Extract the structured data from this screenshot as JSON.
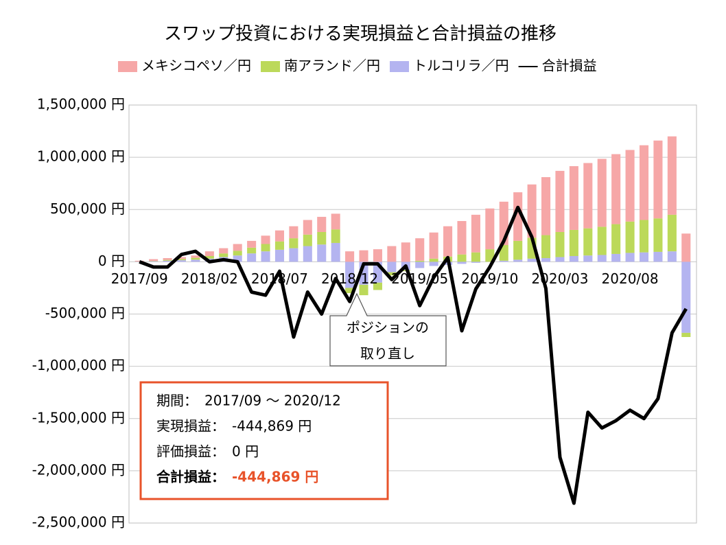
{
  "chart_data": {
    "type": "bar",
    "title": "スワップ投資における実現損益と合計損益の推移",
    "categories": [
      "2017/09",
      null,
      null,
      null,
      null,
      "2018/02",
      null,
      null,
      null,
      null,
      "2018/07",
      null,
      null,
      null,
      null,
      "2018/12",
      null,
      null,
      null,
      null,
      "2019/05",
      null,
      null,
      null,
      null,
      "2019/10",
      null,
      null,
      null,
      null,
      "2020/03",
      null,
      null,
      null,
      null,
      "2020/08",
      null,
      null,
      null,
      null
    ],
    "series": [
      {
        "name": "メキシコペソ／円",
        "type": "bar",
        "color": "#f6a7a7",
        "values": [
          7000,
          17000,
          17000,
          18000,
          22000,
          45000,
          50000,
          65000,
          65000,
          80000,
          105000,
          115000,
          140000,
          145000,
          150000,
          100000,
          110000,
          120000,
          150000,
          185000,
          215000,
          250000,
          290000,
          320000,
          360000,
          390000,
          415000,
          465000,
          510000,
          555000,
          585000,
          610000,
          625000,
          650000,
          670000,
          685000,
          715000,
          745000,
          750000,
          270000
        ]
      },
      {
        "name": "南アランド／円",
        "type": "bar",
        "color": "#bcd95a",
        "values": [
          1000,
          3000,
          8000,
          12000,
          18000,
          25000,
          35000,
          45000,
          55000,
          70000,
          80000,
          95000,
          110000,
          120000,
          130000,
          -50000,
          -100000,
          -70000,
          -30000,
          -10000,
          10000,
          30000,
          50000,
          70000,
          90000,
          120000,
          150000,
          180000,
          200000,
          220000,
          240000,
          250000,
          260000,
          270000,
          285000,
          300000,
          310000,
          320000,
          350000,
          -40000
        ]
      },
      {
        "name": "トルコリラ／円",
        "type": "bar",
        "color": "#b4b4f0",
        "values": [
          2000,
          5000,
          10000,
          15000,
          20000,
          30000,
          45000,
          60000,
          80000,
          100000,
          115000,
          130000,
          150000,
          165000,
          180000,
          -250000,
          -220000,
          -200000,
          -100000,
          -80000,
          -60000,
          -40000,
          -30000,
          -20000,
          -10000,
          0,
          10000,
          20000,
          30000,
          35000,
          45000,
          55000,
          60000,
          65000,
          75000,
          85000,
          90000,
          95000,
          100000,
          -680000
        ]
      },
      {
        "name": "合計損益",
        "type": "line",
        "color": "#000000",
        "values": [
          0,
          -50000,
          -50000,
          70000,
          100000,
          0,
          20000,
          0,
          -290000,
          -320000,
          -90000,
          -720000,
          -290000,
          -500000,
          -160000,
          -380000,
          -20000,
          -20000,
          -170000,
          -40000,
          -420000,
          -150000,
          40000,
          -660000,
          -260000,
          -50000,
          200000,
          520000,
          236000,
          -256000,
          -1870000,
          -2310000,
          -1440000,
          -1590000,
          -1520000,
          -1420000,
          -1500000,
          -1310000,
          -680000,
          -450000
        ]
      }
    ],
    "ylim": [
      -2500000,
      1500000
    ],
    "yticks": [
      {
        "value": -2500000,
        "label": "-2,500,000 円"
      },
      {
        "value": -2000000,
        "label": "-2,000,000 円"
      },
      {
        "value": -1500000,
        "label": "-1,500,000 円"
      },
      {
        "value": -1000000,
        "label": "-1,000,000 円"
      },
      {
        "value": -500000,
        "label": "-500,000 円"
      },
      {
        "value": 0,
        "label": "0 円"
      },
      {
        "value": 500000,
        "label": "500,000 円"
      },
      {
        "value": 1000000,
        "label": "1,000,000 円"
      },
      {
        "value": 1500000,
        "label": "1,500,000 円"
      }
    ],
    "grid": true,
    "legend": "top",
    "annotation": "ポジションの取り直し",
    "info": [
      {
        "label": "期間：",
        "value": "2017/09 ～ 2020/12"
      },
      {
        "label": "実現損益：",
        "value": "-444,869 円"
      },
      {
        "label": "評価損益：",
        "value": "0 円"
      },
      {
        "label": "合計損益：",
        "value": "-444,869 円"
      }
    ]
  }
}
